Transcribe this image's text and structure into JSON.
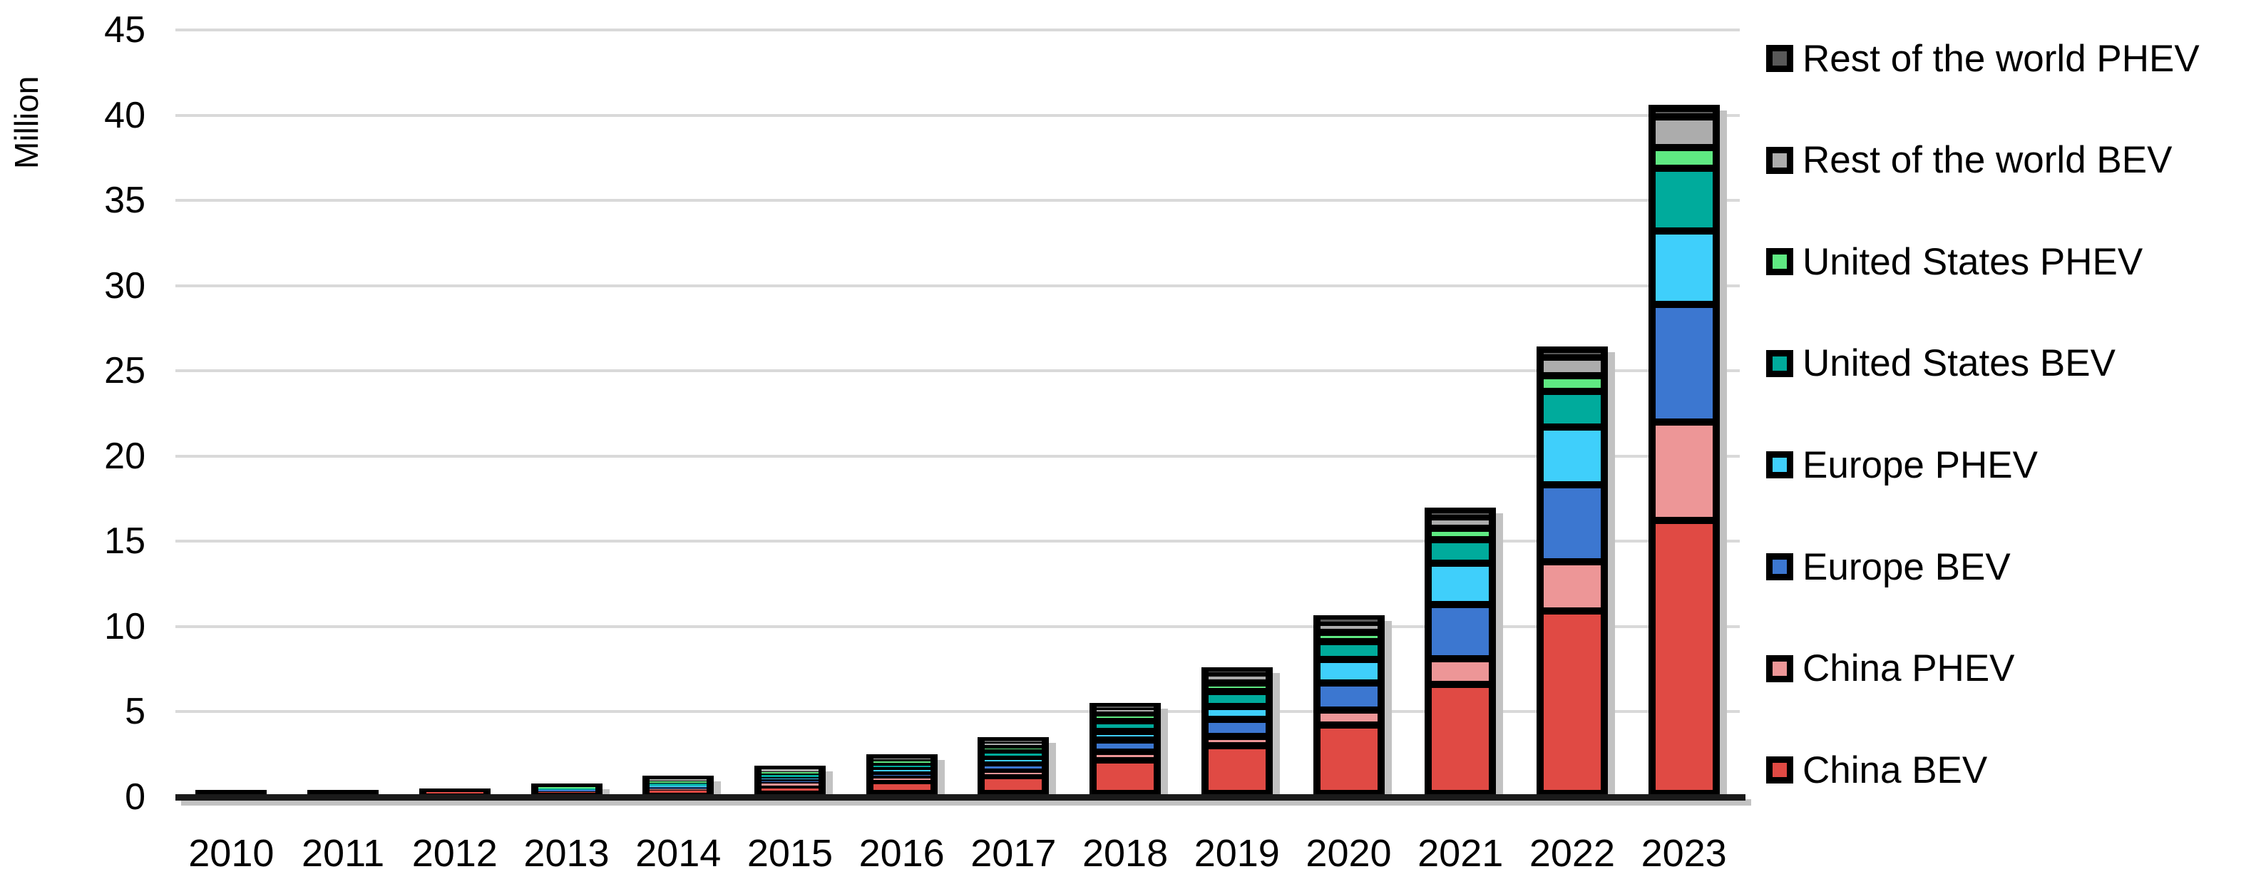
{
  "chart_data": {
    "type": "bar",
    "stacked": true,
    "title": "",
    "xlabel": "",
    "ylabel": "Million",
    "ylim": [
      0,
      45
    ],
    "ytick_step": 5,
    "y_ticks": [
      0,
      5,
      10,
      15,
      20,
      25,
      30,
      35,
      40,
      45
    ],
    "grid": "horizontal",
    "legend_position": "right",
    "categories": [
      "2010",
      "2011",
      "2012",
      "2013",
      "2014",
      "2015",
      "2016",
      "2017",
      "2018",
      "2019",
      "2020",
      "2021",
      "2022",
      "2023"
    ],
    "series": [
      {
        "name": "China BEV",
        "color": "#e04a44",
        "values": [
          0.01,
          0.04,
          0.08,
          0.13,
          0.2,
          0.45,
          0.75,
          1.05,
          1.98,
          2.8,
          4.0,
          6.4,
          10.7,
          16.0
        ]
      },
      {
        "name": "China PHEV",
        "color": "#ed9697",
        "values": [
          0.0,
          0.0,
          0.01,
          0.02,
          0.06,
          0.12,
          0.17,
          0.25,
          0.45,
          0.55,
          0.9,
          1.5,
          2.9,
          5.8
        ]
      },
      {
        "name": "Europe BEV",
        "color": "#3c77d0",
        "values": [
          0.0,
          0.02,
          0.04,
          0.08,
          0.13,
          0.21,
          0.3,
          0.45,
          0.72,
          1.0,
          1.6,
          3.2,
          4.5,
          6.9
        ]
      },
      {
        "name": "Europe PHEV",
        "color": "#3fcffb",
        "values": [
          0.0,
          0.01,
          0.02,
          0.04,
          0.08,
          0.16,
          0.25,
          0.35,
          0.5,
          0.75,
          1.35,
          2.4,
          3.4,
          4.3
        ]
      },
      {
        "name": "United States BEV",
        "color": "#00ab9c",
        "values": [
          0.0,
          0.01,
          0.03,
          0.07,
          0.12,
          0.18,
          0.25,
          0.35,
          0.6,
          0.9,
          1.05,
          1.4,
          2.1,
          3.7
        ]
      },
      {
        "name": "United States PHEV",
        "color": "#5fe982",
        "values": [
          0.0,
          0.01,
          0.04,
          0.09,
          0.15,
          0.19,
          0.23,
          0.33,
          0.42,
          0.5,
          0.55,
          0.65,
          0.9,
          1.2
        ]
      },
      {
        "name": "Rest of the world BEV",
        "color": "#acacac",
        "values": [
          0.01,
          0.02,
          0.03,
          0.05,
          0.08,
          0.12,
          0.15,
          0.22,
          0.35,
          0.55,
          0.6,
          0.7,
          1.1,
          1.8
        ]
      },
      {
        "name": "Rest of the world PHEV",
        "color": "#595959",
        "values": [
          0.0,
          0.0,
          0.01,
          0.01,
          0.02,
          0.03,
          0.05,
          0.08,
          0.1,
          0.15,
          0.2,
          0.3,
          0.4,
          0.5
        ]
      }
    ],
    "legend_order_top_to_bottom": [
      "Rest of the world PHEV",
      "Rest of the world BEV",
      "United States PHEV",
      "United States BEV",
      "Europe PHEV",
      "Europe BEV",
      "China PHEV",
      "China BEV"
    ]
  },
  "styles": {
    "background": "#ffffff",
    "segment_border": "#000000",
    "gridline": "#d9d9d9",
    "axis_line": "#1a1a1a",
    "bar_shadow": "#c2c2c2",
    "text": "#000000"
  }
}
